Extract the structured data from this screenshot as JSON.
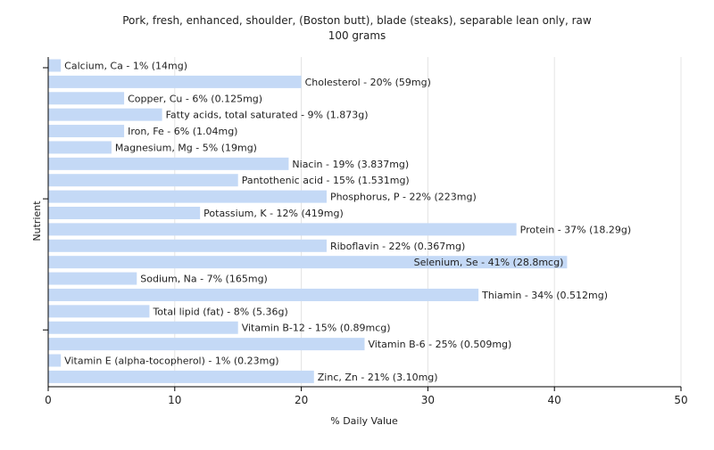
{
  "colors": {
    "bar": "#c4d9f6",
    "grid": "#e4e4e4",
    "axis": "#000000",
    "text": "#222222",
    "background": "#ffffff"
  },
  "chart_data": {
    "type": "bar",
    "orientation": "horizontal",
    "title_line1": "Pork, fresh, enhanced, shoulder, (Boston butt), blade (steaks), separable lean only, raw",
    "title_line2": "100 grams",
    "xlabel": "% Daily Value",
    "ylabel": "Nutrient",
    "xlim": [
      0,
      50
    ],
    "xticks": [
      0,
      10,
      20,
      30,
      40,
      50
    ],
    "grid": true,
    "categories": [
      "Calcium, Ca",
      "Cholesterol",
      "Copper, Cu",
      "Fatty acids, total saturated",
      "Iron, Fe",
      "Magnesium, Mg",
      "Niacin",
      "Pantothenic acid",
      "Phosphorus, P",
      "Potassium, K",
      "Protein",
      "Riboflavin",
      "Selenium, Se",
      "Sodium, Na",
      "Thiamin",
      "Total lipid (fat)",
      "Vitamin B-12",
      "Vitamin B-6",
      "Vitamin E (alpha-tocopherol)",
      "Zinc, Zn"
    ],
    "values": [
      1,
      20,
      6,
      9,
      6,
      5,
      19,
      15,
      22,
      12,
      37,
      22,
      41,
      7,
      34,
      8,
      15,
      25,
      1,
      21
    ],
    "labels": [
      "Calcium, Ca - 1% (14mg)",
      "Cholesterol - 20% (59mg)",
      "Copper, Cu - 6% (0.125mg)",
      "Fatty acids, total saturated - 9% (1.873g)",
      "Iron, Fe - 6% (1.04mg)",
      "Magnesium, Mg - 5% (19mg)",
      "Niacin - 19% (3.837mg)",
      "Pantothenic acid - 15% (1.531mg)",
      "Phosphorus, P - 22% (223mg)",
      "Potassium, K - 12% (419mg)",
      "Protein - 37% (18.29g)",
      "Riboflavin - 22% (0.367mg)",
      "Selenium, Se - 41% (28.8mcg)",
      "Sodium, Na - 7% (165mg)",
      "Thiamin - 34% (0.512mg)",
      "Total lipid (fat) - 8% (5.36g)",
      "Vitamin B-12 - 15% (0.89mcg)",
      "Vitamin B-6 - 25% (0.509mg)",
      "Vitamin E (alpha-tocopherol) - 1% (0.23mg)",
      "Zinc, Zn - 21% (3.10mg)"
    ]
  }
}
